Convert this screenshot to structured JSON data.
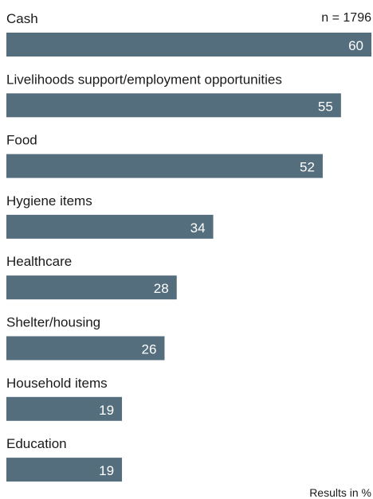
{
  "chart_data": {
    "type": "bar",
    "orientation": "horizontal",
    "categories": [
      "Cash",
      "Livelihoods support/employment opportunities",
      "Food",
      "Hygiene items",
      "Healthcare",
      "Shelter/housing",
      "Household items",
      "Education"
    ],
    "values": [
      60,
      55,
      52,
      34,
      28,
      26,
      19,
      19
    ],
    "xlim": [
      0,
      60
    ],
    "sample_size": "n = 1796",
    "note": "Results in %",
    "grid": false,
    "legend": "none",
    "bar_color": "#546e7e",
    "value_label_color": "#ffffff"
  }
}
